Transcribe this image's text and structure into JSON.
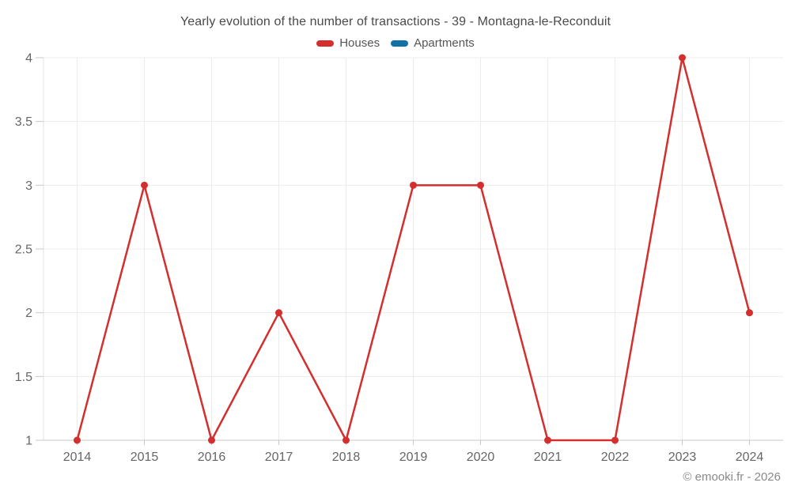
{
  "chart_data": {
    "type": "line",
    "title": "Yearly evolution of the number of transactions - 39 - Montagna-le-Reconduit",
    "categories": [
      "2014",
      "2015",
      "2016",
      "2017",
      "2018",
      "2019",
      "2020",
      "2021",
      "2022",
      "2023",
      "2024"
    ],
    "series": [
      {
        "name": "Houses",
        "color": "#d32f2f",
        "values": [
          1,
          3,
          1,
          2,
          1,
          3,
          3,
          1,
          1,
          4,
          2
        ]
      },
      {
        "name": "Apartments",
        "color": "#1272a5",
        "values": []
      }
    ],
    "xlabel": "",
    "ylabel": "",
    "ylim": [
      1,
      4
    ],
    "ytick_step": 0.5,
    "yticks": [
      1,
      1.5,
      2,
      2.5,
      3,
      3.5,
      4
    ],
    "grid": true,
    "legend_position": "top"
  },
  "colors": {
    "grid": "#ececec",
    "y_axis_line": "#e3e3e3",
    "x_axis_line": "#c9c9c9",
    "tick_label": "#666666",
    "title_text": "#4a4a4a",
    "legend_text": "#555555",
    "copyright_text": "#8a8a8a"
  },
  "footer": {
    "copyright": "© emooki.fr - 2026"
  }
}
